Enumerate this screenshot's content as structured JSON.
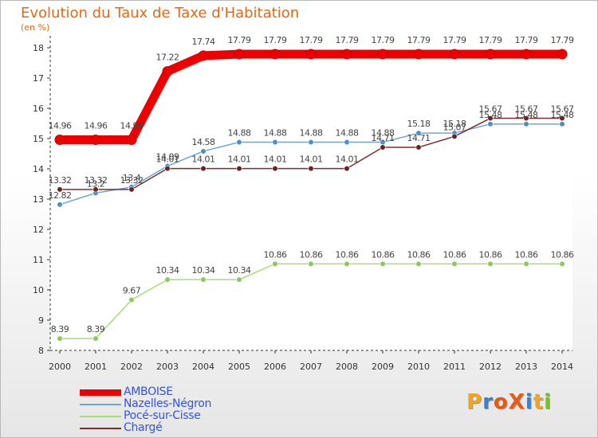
{
  "header": {
    "title": "Evolution du Taux de Taxe d'Habitation",
    "subtitle": "(en %)"
  },
  "logo": {
    "text": "ProXiti",
    "colors": [
      "#f2a51a",
      "#3a7fd0",
      "#e65a14",
      "#e65a14",
      "#3a7fd0",
      "#f2a51a",
      "#7abf2a"
    ]
  },
  "chart_data": {
    "type": "line",
    "title": "Evolution du Taux de Taxe d'Habitation",
    "ylabel": "(en %)",
    "xlabel": "",
    "x": [
      "2000",
      "2001",
      "2002",
      "2003",
      "2004",
      "2005",
      "2006",
      "2007",
      "2008",
      "2009",
      "2010",
      "2011",
      "2012",
      "2013",
      "2014"
    ],
    "yticks": [
      "8",
      "9",
      "10",
      "11",
      "12",
      "13",
      "14",
      "15",
      "16",
      "17",
      "18"
    ],
    "ylim": [
      8,
      18
    ],
    "grid": false,
    "legend_position": "bottom-left",
    "series": [
      {
        "name": "AMBOISE",
        "color": "#ee0000",
        "width": "thick",
        "values": [
          14.96,
          14.96,
          14.96,
          17.22,
          17.74,
          17.79,
          17.79,
          17.79,
          17.79,
          17.79,
          17.79,
          17.79,
          17.79,
          17.79,
          17.79
        ],
        "labels": [
          "14.96",
          "14.96",
          "14.96",
          "17.22",
          "17.74",
          "17.79",
          "17.79",
          "17.79",
          "17.79",
          "17.79",
          "17.79",
          "17.79",
          "17.79",
          "17.79",
          "17.79"
        ]
      },
      {
        "name": "Nazelles-Négron",
        "color": "#6fa5d4",
        "marker": "#4a8fcb",
        "width": "thin",
        "values": [
          12.82,
          13.2,
          13.4,
          14.09,
          14.58,
          14.88,
          14.88,
          14.88,
          14.88,
          14.88,
          15.18,
          15.18,
          15.48,
          15.48,
          15.48
        ],
        "labels": [
          "12.82",
          "13.2",
          "13.4",
          "14.09",
          "14.58",
          "14.88",
          "14.88",
          "14.88",
          "14.88",
          "14.88",
          "15.18",
          "15.18",
          "15.48",
          "15.48",
          "15.48"
        ]
      },
      {
        "name": "Pocé-sur-Cisse",
        "color": "#a8dd7a",
        "marker": "#8cc95a",
        "width": "thin",
        "values": [
          8.39,
          8.39,
          9.67,
          10.34,
          10.34,
          10.34,
          10.86,
          10.86,
          10.86,
          10.86,
          10.86,
          10.86,
          10.86,
          10.86,
          10.86
        ],
        "labels": [
          "8.39",
          "8.39",
          "9.67",
          "10.34",
          "10.34",
          "10.34",
          "10.86",
          "10.86",
          "10.86",
          "10.86",
          "10.86",
          "10.86",
          "10.86",
          "10.86",
          "10.86"
        ]
      },
      {
        "name": "Chargé",
        "color": "#7a2e2e",
        "marker": "#6a2222",
        "width": "thin",
        "values": [
          13.32,
          13.32,
          13.32,
          14.01,
          14.01,
          14.01,
          14.01,
          14.01,
          14.01,
          14.71,
          14.71,
          15.07,
          15.67,
          15.67,
          15.67
        ],
        "labels": [
          "13.32",
          "13.32",
          "13.32",
          "14.01",
          "14.01",
          "14.01",
          "14.01",
          "14.01",
          "14.01",
          "14.71",
          "14.71",
          "15.07",
          "15.67",
          "15.67",
          "15.67"
        ]
      }
    ]
  }
}
